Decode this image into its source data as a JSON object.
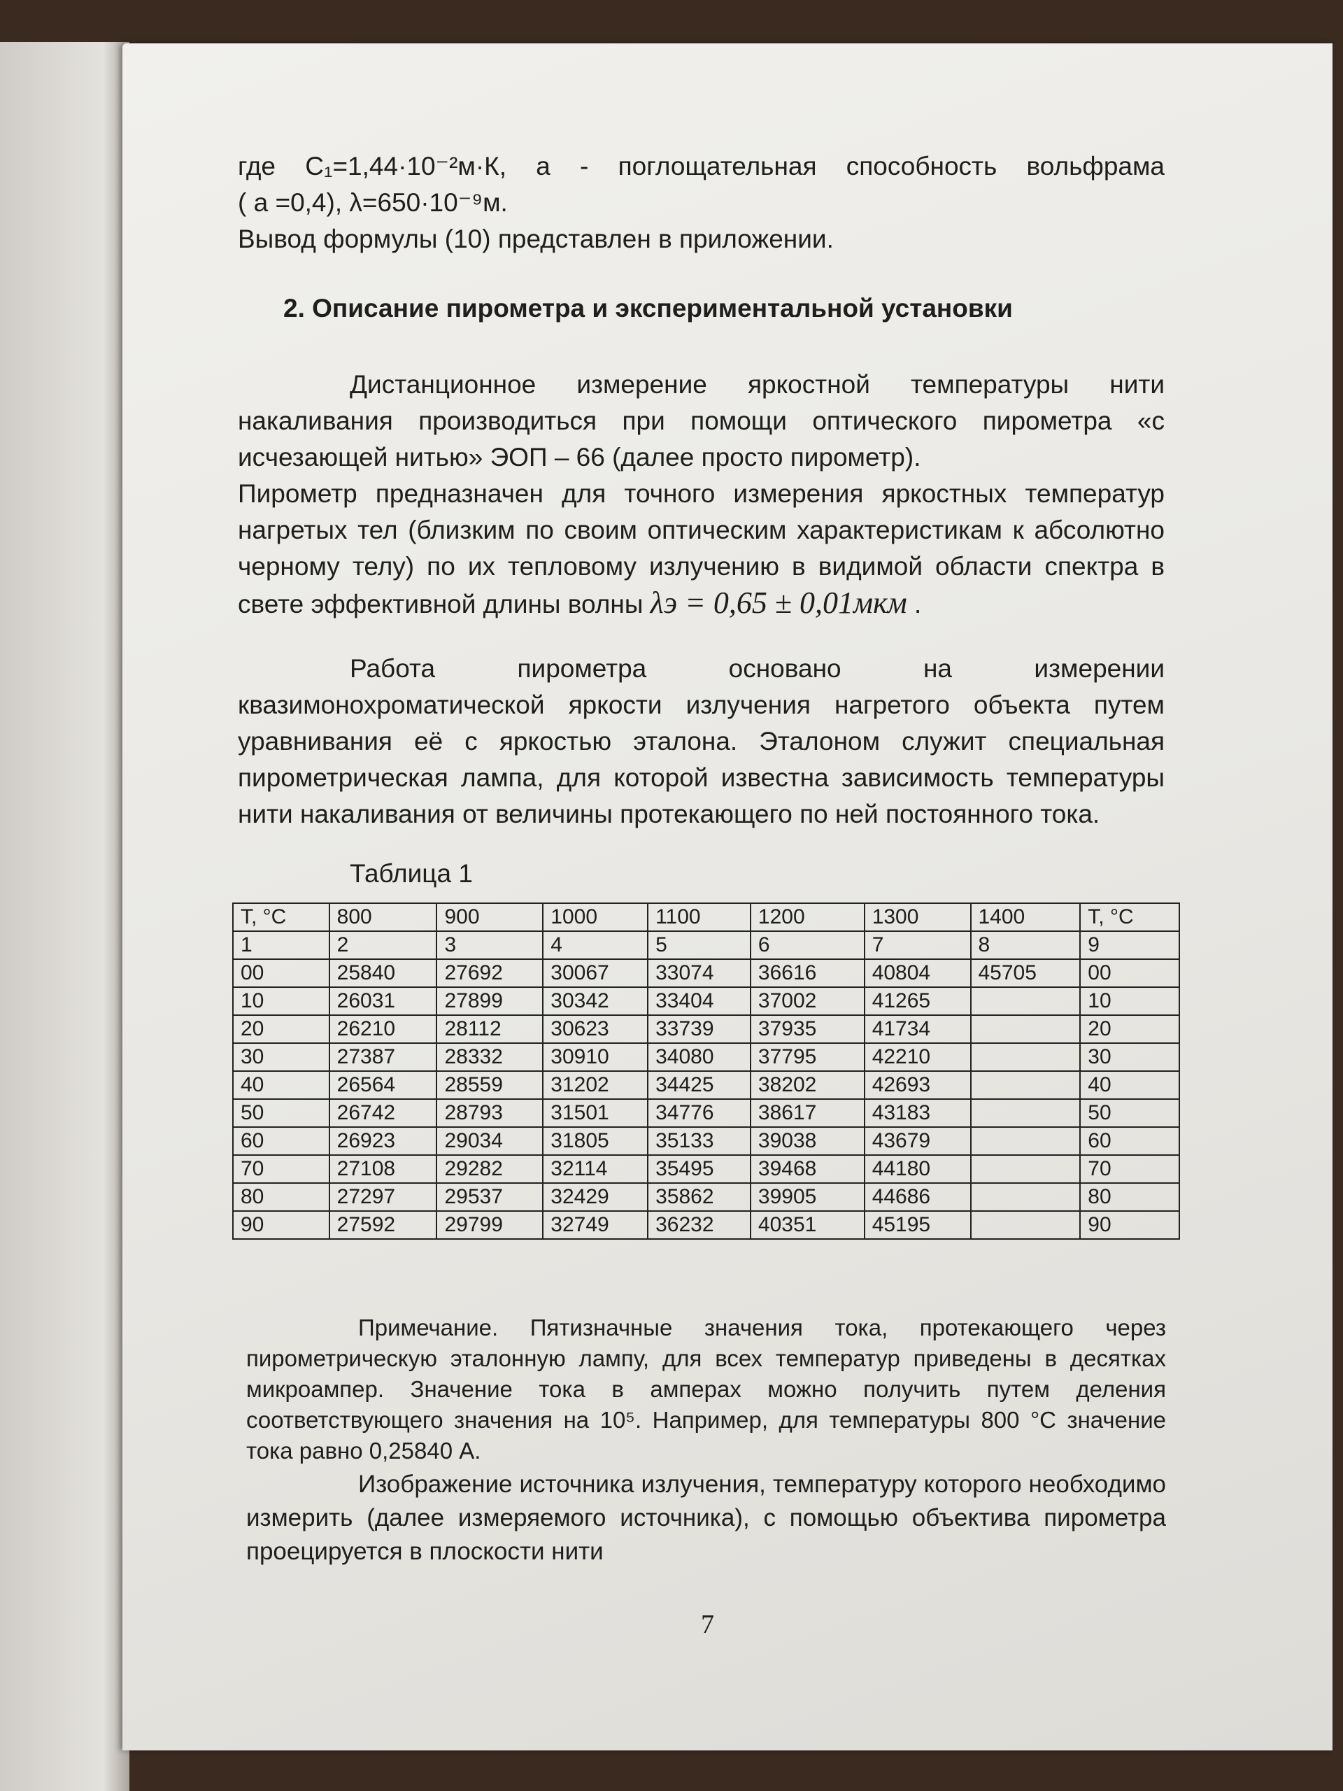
{
  "paragraphs": {
    "p0_line1": "где C₁=1,44·10⁻²м·К, a - поглощательная  способность вольфрама",
    "p0_line2": "( a =0,4), λ=650·10⁻⁹м.",
    "p0_line3": "Вывод формулы (10) представлен в приложении.",
    "heading": "2. Описание пирометра и экспериментальной установки",
    "p1": "Дистанционное измерение яркостной температуры нити накаливания производиться при помощи оптического пирометра «с исчезающей нитью» ЭОП – 66 (далее просто пирометр).",
    "p2": "Пирометр предназначен для точного измерения яркостных температур нагретых тел (близким по своим оптическим характеристикам к абсолютно черному телу) по их тепловому излучению в видимой области спектра в свете эффективной длины волны",
    "p2_formula": "λэ = 0,65 ± 0,01мкм",
    "p3": "Работа пирометра основано на измерении квазимонохроматической яркости излучения нагретого объекта путем уравнивания её с яркостью эталона. Эталоном служит специальная пирометрическая лампа, для которой известна зависимость температуры нити накаливания от величины протекающего по ней постоянного тока.",
    "table_caption": "Таблица 1",
    "note": "Примечание. Пятизначные значения тока, протекающего через пирометрическую эталонную лампу, для всех температур приведены в десятках микроампер. Значение тока в амперах можно получить путем деления соответствующего значения на 10⁵. Например, для температуры 800 °С значение тока равно 0,25840 А.",
    "p4": "Изображение источника излучения, температуру которого необходимо измерить (далее измеряемого источника), с помощью объектива пирометра проецируется в плоскости нити"
  },
  "table": {
    "header": [
      "T, °C",
      "800",
      "900",
      "1000",
      "1100",
      "1200",
      "1300",
      "1400",
      "T, °C"
    ],
    "numbers": [
      "1",
      "2",
      "3",
      "4",
      "5",
      "6",
      "7",
      "8",
      "9"
    ],
    "rows": [
      [
        "00",
        "25840",
        "27692",
        "30067",
        "33074",
        "36616",
        "40804",
        "45705",
        "00"
      ],
      [
        "10",
        "26031",
        "27899",
        "30342",
        "33404",
        "37002",
        "41265",
        "",
        "10"
      ],
      [
        "20",
        "26210",
        "28112",
        "30623",
        "33739",
        "37935",
        "41734",
        "",
        "20"
      ],
      [
        "30",
        "27387",
        "28332",
        "30910",
        "34080",
        "37795",
        "42210",
        "",
        "30"
      ],
      [
        "40",
        "26564",
        "28559",
        "31202",
        "34425",
        "38202",
        "42693",
        "",
        "40"
      ],
      [
        "50",
        "26742",
        "28793",
        "31501",
        "34776",
        "38617",
        "43183",
        "",
        "50"
      ],
      [
        "60",
        "26923",
        "29034",
        "31805",
        "35133",
        "39038",
        "43679",
        "",
        "60"
      ],
      [
        "70",
        "27108",
        "29282",
        "32114",
        "35495",
        "39468",
        "44180",
        "",
        "70"
      ],
      [
        "80",
        "27297",
        "29537",
        "32429",
        "35862",
        "39905",
        "44686",
        "",
        "80"
      ],
      [
        "90",
        "27592",
        "29799",
        "32749",
        "36232",
        "40351",
        "45195",
        "",
        "90"
      ]
    ]
  },
  "page_number": "7"
}
